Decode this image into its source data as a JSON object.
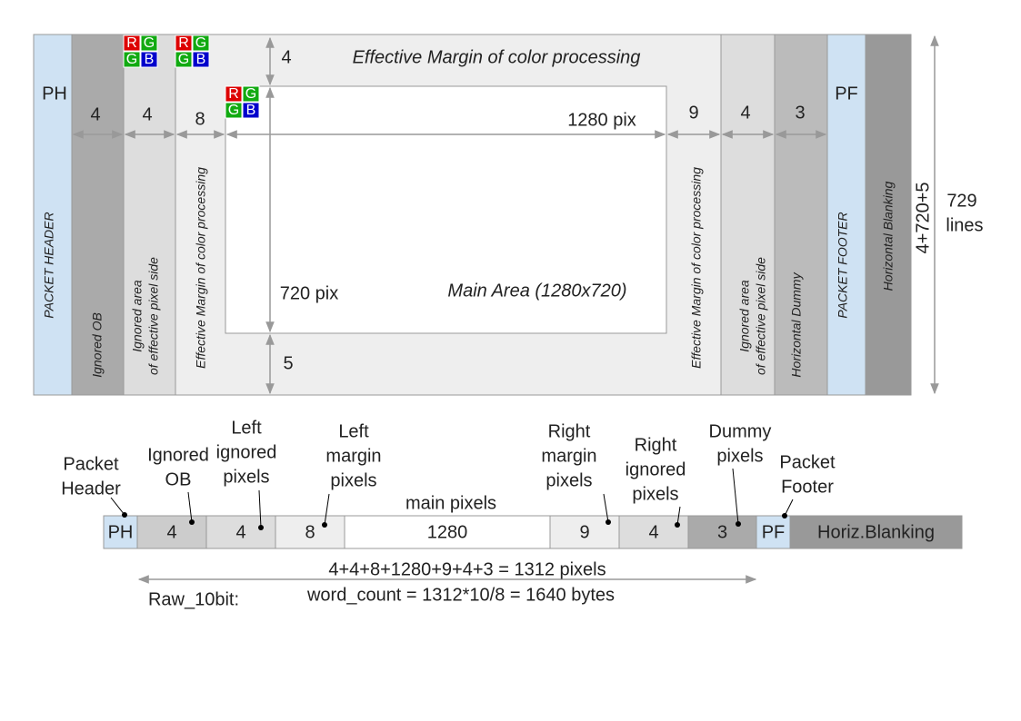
{
  "frame": {
    "ph": "PH",
    "ph_name": "PACKET HEADER",
    "ob_count": "4",
    "ob_name": "Ignored OB",
    "ign_count": "4",
    "ign_name": [
      "Ignored area",
      "of effective pixel side"
    ],
    "margin_count": "8",
    "margin_name": "Effective Margin of color processing",
    "top_margin": "4",
    "top_margin_name": "Effective Margin of color processing",
    "width": "1280 pix",
    "height": "720 pix",
    "bottom_margin": "5",
    "main_name": "Main Area (1280x720)",
    "right_margin_count": "9",
    "right_margin_name": "Effective Margin of color processing",
    "right_ign_count": "4",
    "right_ign_name": [
      "Ignored area",
      "of effective pixel side"
    ],
    "dummy_count": "3",
    "dummy_name": "Horizontal Dummy",
    "pf": "PF",
    "pf_name": "PACKET FOOTER",
    "blanking_name": "Horizontal Blanking",
    "total_lines_formula": "4+720+5",
    "total_lines": [
      "729",
      "lines"
    ]
  },
  "bayer": [
    "R",
    "G",
    "G",
    "B"
  ],
  "line": {
    "segments": [
      {
        "value": "PH",
        "caption": [
          "Packet",
          "Header"
        ]
      },
      {
        "value": "4",
        "caption": [
          "Ignored",
          "OB"
        ]
      },
      {
        "value": "4",
        "caption": [
          "Left",
          "ignored",
          "pixels"
        ]
      },
      {
        "value": "8",
        "caption": [
          "Left",
          "margin",
          "pixels"
        ]
      },
      {
        "value": "1280",
        "caption": [
          "main pixels"
        ]
      },
      {
        "value": "9",
        "caption": [
          "Right",
          "margin",
          "pixels"
        ]
      },
      {
        "value": "4",
        "caption": [
          "Right",
          "ignored",
          "pixels"
        ]
      },
      {
        "value": "3",
        "caption": [
          "Dummy",
          "pixels"
        ]
      },
      {
        "value": "PF",
        "caption": [
          "Packet",
          "Footer"
        ]
      },
      {
        "value": "Horiz.Blanking"
      }
    ],
    "sum": "4+4+8+1280+9+4+3 = 1312 pixels",
    "format": "Raw_10bit:",
    "word_count": "word_count = 1312*10/8 = 1640 bytes"
  }
}
